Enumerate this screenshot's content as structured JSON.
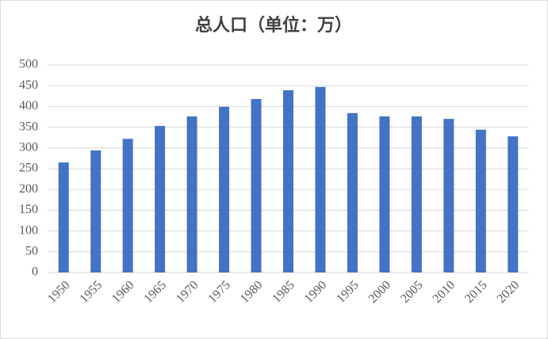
{
  "chart_data": {
    "type": "bar",
    "title": "总人口（单位：万）",
    "categories": [
      "1950",
      "1955",
      "1960",
      "1965",
      "1970",
      "1975",
      "1980",
      "1985",
      "1990",
      "1995",
      "2000",
      "2005",
      "2010",
      "2015",
      "2020"
    ],
    "values": [
      265,
      294,
      322,
      353,
      376,
      399,
      418,
      439,
      447,
      384,
      376,
      376,
      370,
      344,
      328
    ],
    "color": "#4472c4",
    "ylim": [
      0,
      500
    ],
    "yticks": [
      0,
      50,
      100,
      150,
      200,
      250,
      300,
      350,
      400,
      450,
      500
    ],
    "grid": true
  }
}
